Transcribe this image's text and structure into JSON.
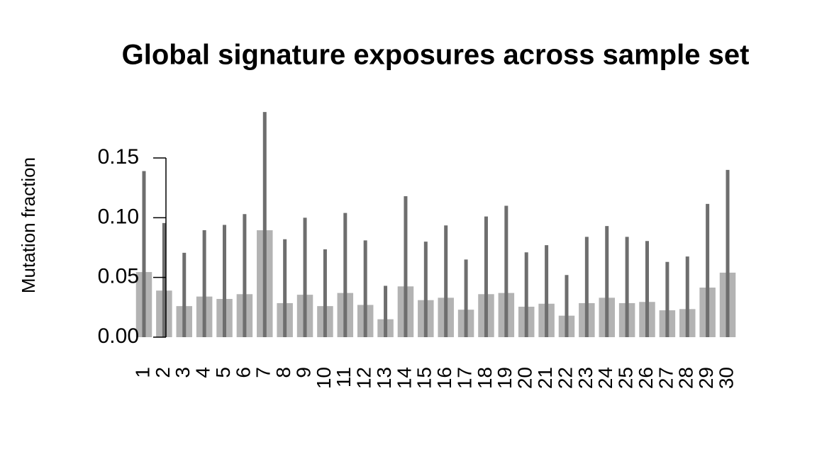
{
  "chart_data": {
    "type": "bar",
    "title": "Global signature exposures across sample set",
    "y_label": "Mutation fraction",
    "categories": [
      "1",
      "2",
      "3",
      "4",
      "5",
      "6",
      "7",
      "8",
      "9",
      "10",
      "11",
      "12",
      "13",
      "14",
      "15",
      "16",
      "17",
      "18",
      "19",
      "20",
      "21",
      "22",
      "23",
      "24",
      "25",
      "26",
      "27",
      "28",
      "29",
      "30"
    ],
    "values": [
      0.0545,
      0.039,
      0.026,
      0.034,
      0.032,
      0.036,
      0.0895,
      0.0285,
      0.0355,
      0.026,
      0.037,
      0.027,
      0.015,
      0.0425,
      0.031,
      0.033,
      0.023,
      0.036,
      0.037,
      0.0255,
      0.028,
      0.018,
      0.0285,
      0.033,
      0.0285,
      0.0295,
      0.0225,
      0.0235,
      0.0415,
      0.054
    ],
    "whisker_tops": [
      0.139,
      0.0955,
      0.0706,
      0.0895,
      0.094,
      0.103,
      0.1885,
      0.082,
      0.1,
      0.0735,
      0.104,
      0.081,
      0.043,
      0.118,
      0.08,
      0.0935,
      0.065,
      0.101,
      0.11,
      0.071,
      0.077,
      0.052,
      0.084,
      0.093,
      0.084,
      0.0805,
      0.063,
      0.0675,
      0.1115,
      0.14
    ],
    "color": "#b3b3b3",
    "whisker_color": "#6e6e6e",
    "ylim": [
      0,
      0.15
    ],
    "yticks": [
      {
        "value": 0,
        "label": "0.00"
      },
      {
        "value": 0.05,
        "label": "0.05"
      },
      {
        "value": 0.1,
        "label": "0.10"
      },
      {
        "value": 0.15,
        "label": "0.15"
      }
    ]
  }
}
